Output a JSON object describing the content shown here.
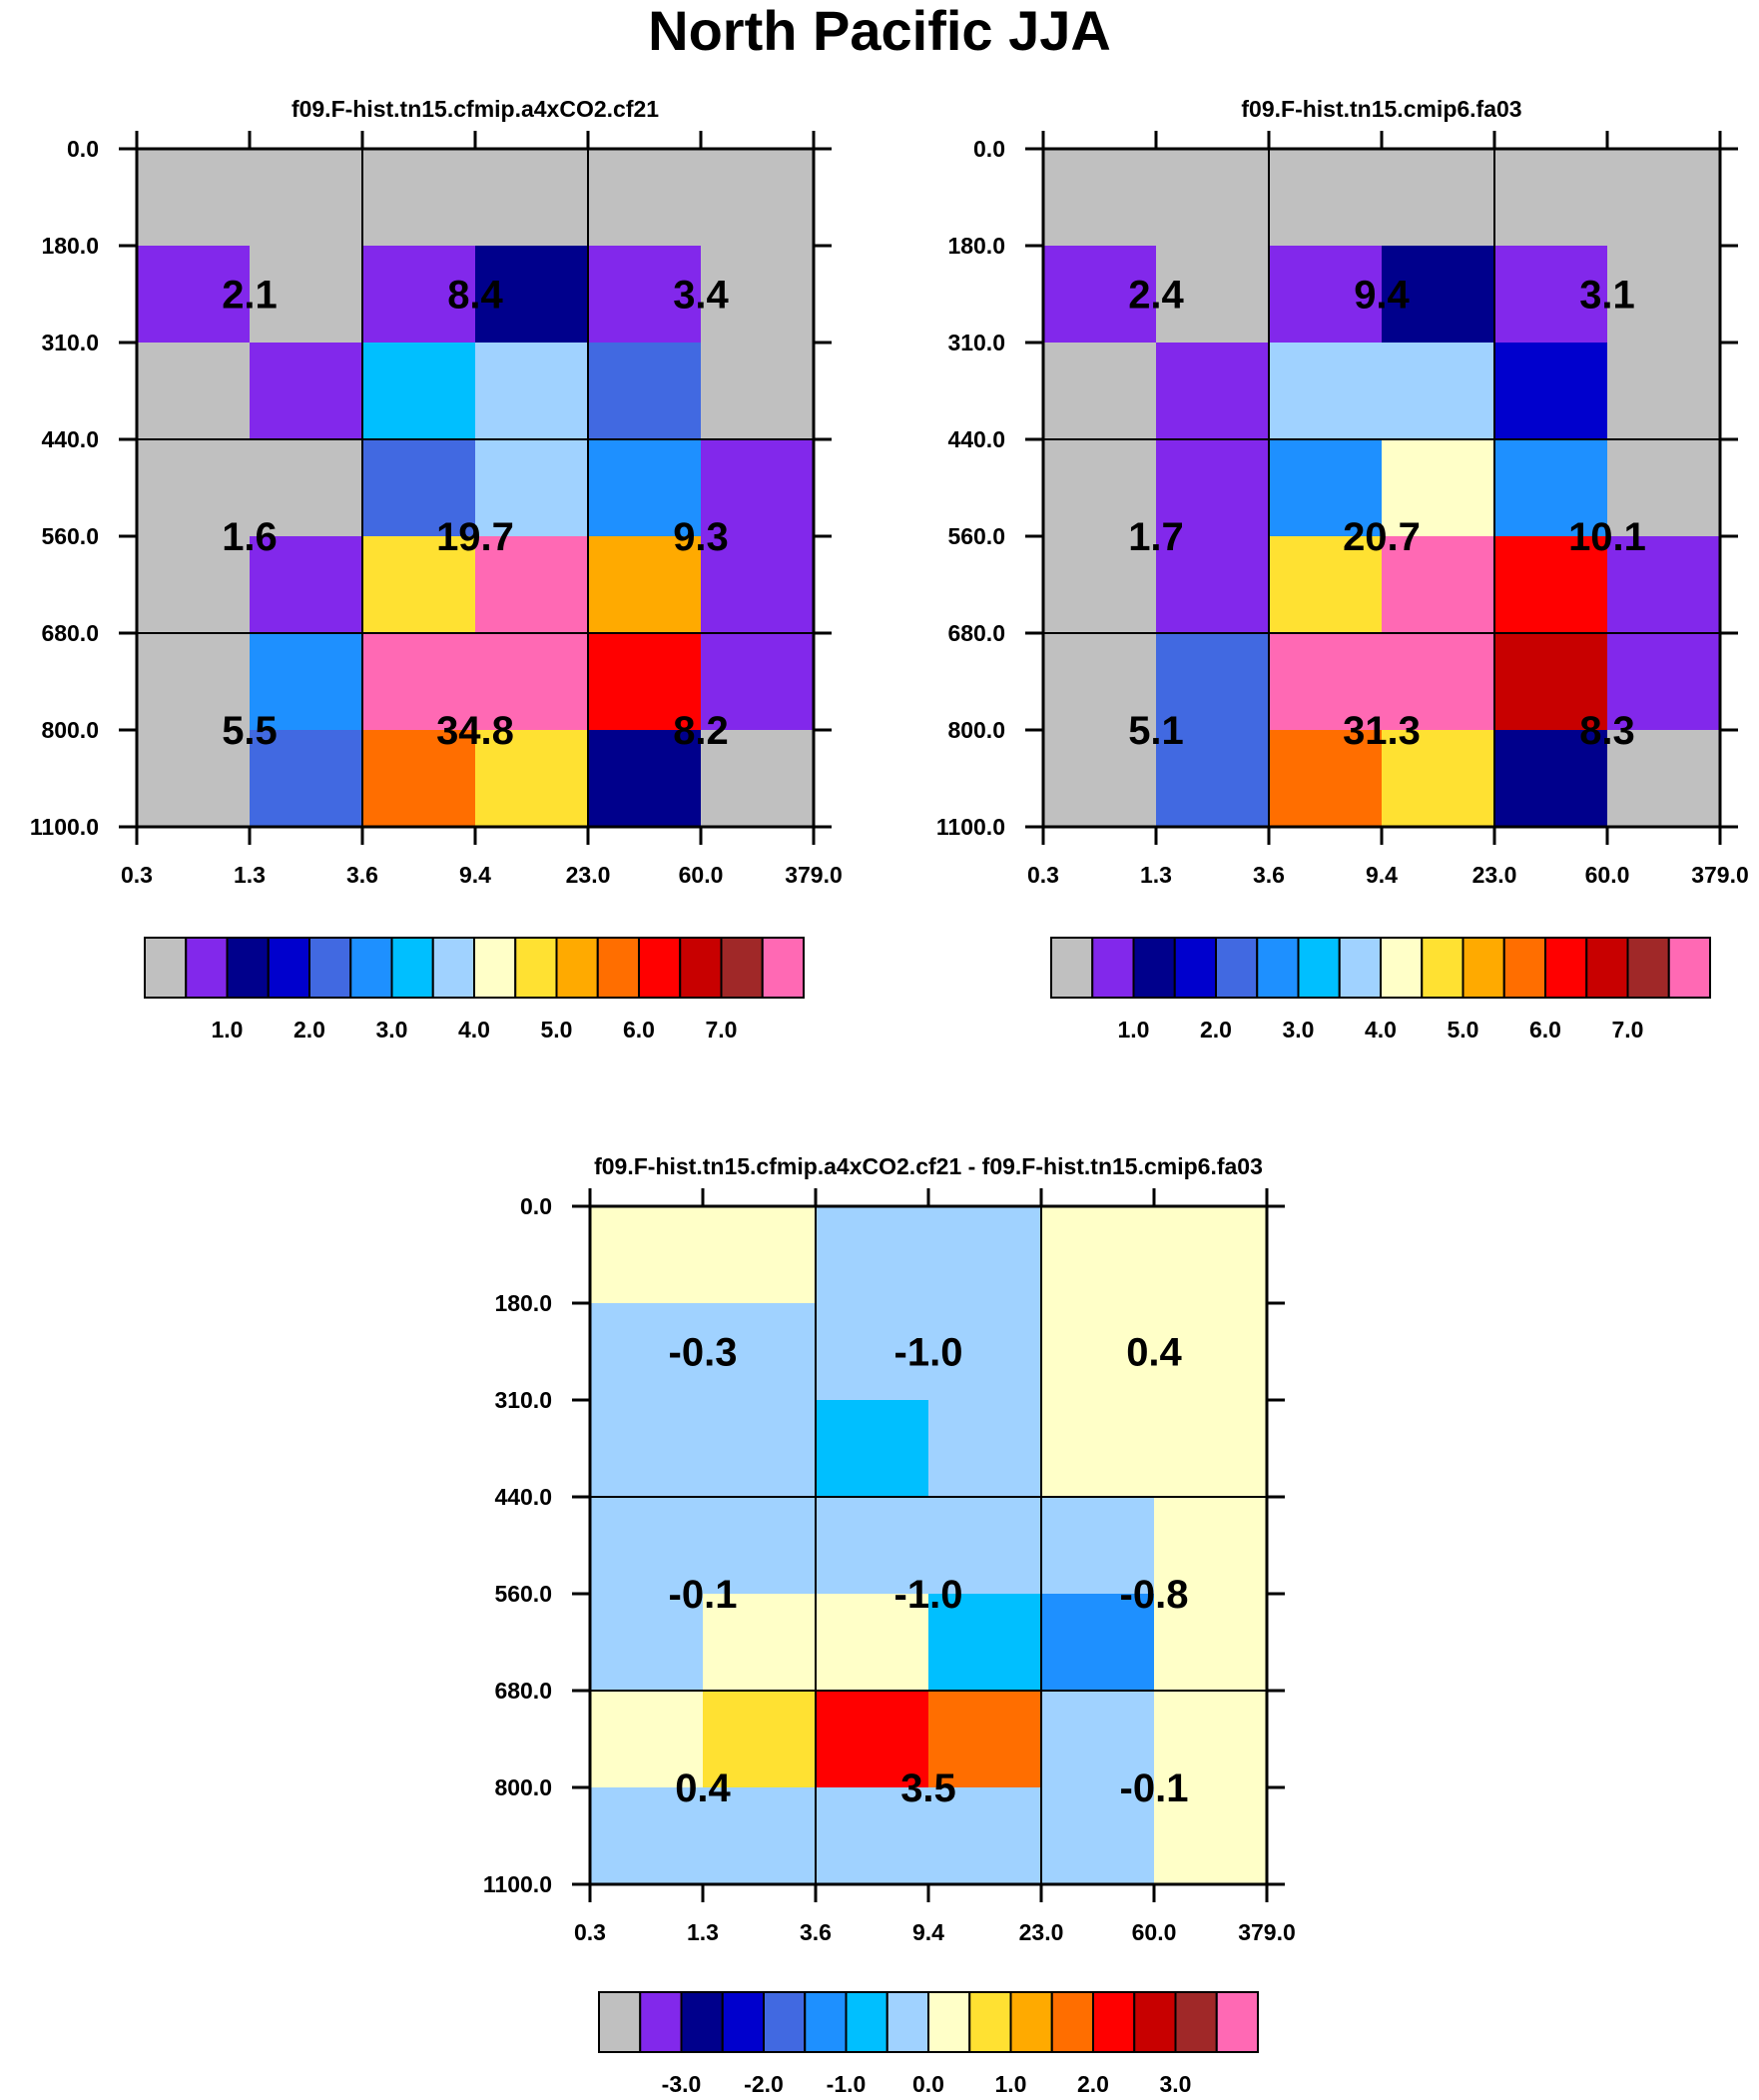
{
  "title": "North Pacific JJA",
  "colors": {
    "model_palette": [
      "#c0c0c0",
      "#8228eb",
      "#00008c",
      "#0000cd",
      "#4169e1",
      "#1e90ff",
      "#00bfff",
      "#a0d2ff",
      "#ffffc8",
      "#ffe132",
      "#ffaa00",
      "#ff6e00",
      "#ff0000",
      "#c80000",
      "#a02828",
      "#ff69b4"
    ],
    "diff_palette": [
      "#c0c0c0",
      "#8228eb",
      "#00008c",
      "#0000cd",
      "#4169e1",
      "#1e90ff",
      "#00bfff",
      "#a0d2ff",
      "#ffffc8",
      "#ffe132",
      "#ffaa00",
      "#ff6e00",
      "#ff0000",
      "#c80000",
      "#a02828",
      "#ff69b4"
    ]
  },
  "chart_data": [
    {
      "type": "heatmap",
      "title": "f09.F-hist.tn15.cfmip.a4xCO2.cf21",
      "x_ticks": [
        "0.3",
        "1.3",
        "3.6",
        "9.4",
        "23.0",
        "60.0",
        "379.0"
      ],
      "y_ticks": [
        "0.0",
        "180.0",
        "310.0",
        "440.0",
        "560.0",
        "680.0",
        "800.0",
        "1100.0"
      ],
      "cells": [
        [
          0,
          0,
          0,
          0,
          0,
          0
        ],
        [
          1,
          0,
          1,
          2,
          1,
          0
        ],
        [
          0,
          1,
          6,
          7,
          4,
          0
        ],
        [
          0,
          0,
          4,
          7,
          5,
          1
        ],
        [
          0,
          1,
          9,
          15,
          10,
          1
        ],
        [
          0,
          5,
          15,
          15,
          12,
          1
        ],
        [
          0,
          4,
          11,
          9,
          2,
          0
        ]
      ],
      "box_values": [
        [
          "2.1",
          "8.4",
          "3.4"
        ],
        [
          "1.6",
          "19.7",
          "9.3"
        ],
        [
          "5.5",
          "34.8",
          "8.2"
        ]
      ],
      "colorbar_labels": [
        "1.0",
        "2.0",
        "3.0",
        "4.0",
        "5.0",
        "6.0",
        "7.0"
      ]
    },
    {
      "type": "heatmap",
      "title": "f09.F-hist.tn15.cmip6.fa03",
      "x_ticks": [
        "0.3",
        "1.3",
        "3.6",
        "9.4",
        "23.0",
        "60.0",
        "379.0"
      ],
      "y_ticks": [
        "0.0",
        "180.0",
        "310.0",
        "440.0",
        "560.0",
        "680.0",
        "800.0",
        "1100.0"
      ],
      "cells": [
        [
          0,
          0,
          0,
          0,
          0,
          0
        ],
        [
          1,
          0,
          1,
          2,
          1,
          0
        ],
        [
          0,
          1,
          7,
          7,
          3,
          0
        ],
        [
          0,
          1,
          5,
          8,
          5,
          0
        ],
        [
          0,
          1,
          9,
          15,
          12,
          1
        ],
        [
          0,
          4,
          15,
          15,
          13,
          1
        ],
        [
          0,
          4,
          11,
          9,
          2,
          0
        ]
      ],
      "box_values": [
        [
          "2.4",
          "9.4",
          "3.1"
        ],
        [
          "1.7",
          "20.7",
          "10.1"
        ],
        [
          "5.1",
          "31.3",
          "8.3"
        ]
      ],
      "colorbar_labels": [
        "1.0",
        "2.0",
        "3.0",
        "4.0",
        "5.0",
        "6.0",
        "7.0"
      ]
    },
    {
      "type": "heatmap",
      "title": "f09.F-hist.tn15.cfmip.a4xCO2.cf21 - f09.F-hist.tn15.cmip6.fa03",
      "x_ticks": [
        "0.3",
        "1.3",
        "3.6",
        "9.4",
        "23.0",
        "60.0",
        "379.0"
      ],
      "y_ticks": [
        "0.0",
        "180.0",
        "310.0",
        "440.0",
        "560.0",
        "680.0",
        "800.0",
        "1100.0"
      ],
      "cells": [
        [
          8,
          8,
          7,
          7,
          8,
          8
        ],
        [
          7,
          7,
          7,
          7,
          8,
          8
        ],
        [
          7,
          7,
          6,
          7,
          8,
          8
        ],
        [
          7,
          7,
          7,
          7,
          7,
          8
        ],
        [
          7,
          8,
          8,
          6,
          5,
          8
        ],
        [
          8,
          9,
          12,
          11,
          7,
          8
        ],
        [
          7,
          7,
          7,
          7,
          7,
          8
        ]
      ],
      "box_values": [
        [
          "-0.3",
          "-1.0",
          "0.4"
        ],
        [
          "-0.1",
          "-1.0",
          "-0.8"
        ],
        [
          "0.4",
          "3.5",
          "-0.1"
        ]
      ],
      "colorbar_labels": [
        "-3.0",
        "-2.0",
        "-1.0",
        "0.0",
        "1.0",
        "2.0",
        "3.0"
      ]
    }
  ]
}
